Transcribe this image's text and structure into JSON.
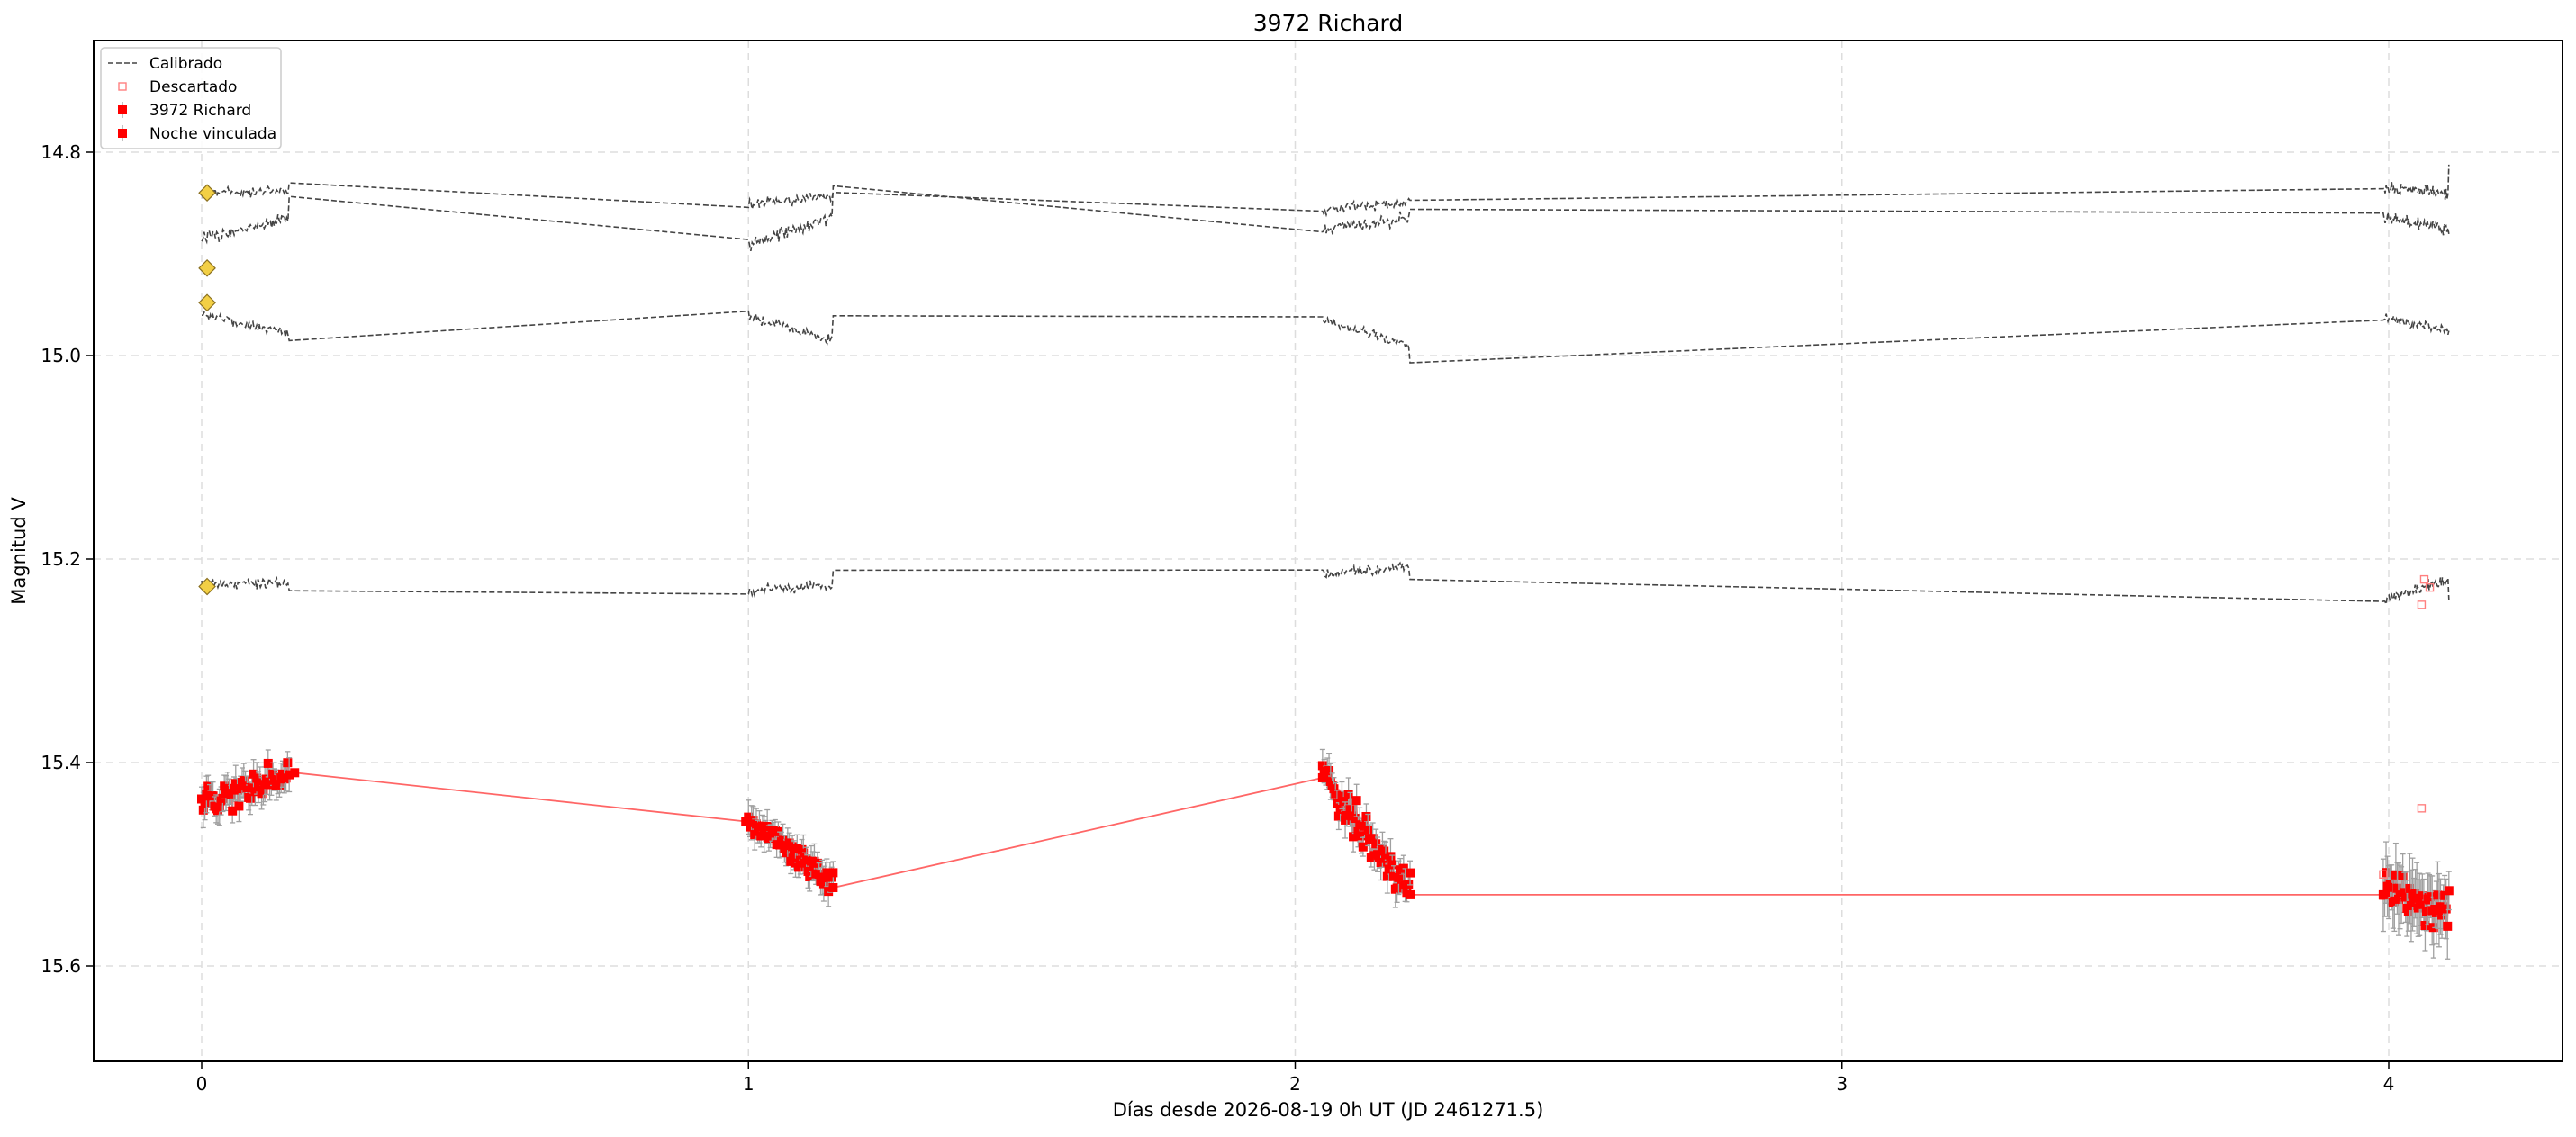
{
  "chart_data": {
    "type": "scatter",
    "title": "3972 Richard",
    "xlabel": "Días desde 2026-08-19 0h UT (JD 2461271.5)",
    "ylabel": "Magnitud V",
    "xlim": [
      -0.2,
      4.32
    ],
    "ylim": [
      15.7,
      14.69
    ],
    "y_inverted": true,
    "grid": true,
    "legend_position": "upper-left",
    "x_ticks": [
      "0",
      "1",
      "2",
      "3",
      "4"
    ],
    "y_ticks": [
      "14.8",
      "15.0",
      "15.2",
      "15.4",
      "15.6"
    ],
    "legend": [
      {
        "label": "Calibrado",
        "marker": "dashed-line"
      },
      {
        "label": "Descartado",
        "marker": "open-square"
      },
      {
        "label": "3972 Richard",
        "marker": "filled-square-errorbar"
      },
      {
        "label": "Noche vinculada",
        "marker": "filled-square-errorbar"
      }
    ],
    "colors": {
      "calibrated": "#444444",
      "target": "#ff0000",
      "link_line": "#ff6666",
      "error_bar": "#a0a0a0",
      "comp_marker_fill": "#f2cf45",
      "grid": "#dddddd"
    },
    "sessions": [
      {
        "night": 0,
        "x_start": 0.0,
        "x_end": 0.16
      },
      {
        "night": 1,
        "x_start": 1.0,
        "x_end": 1.155
      },
      {
        "night": 2,
        "x_start": 2.05,
        "x_end": 2.21
      },
      {
        "night": 3,
        "x_start": 3.99,
        "x_end": 4.11
      }
    ],
    "calibrated_series": [
      {
        "levels": [
          14.84,
          14.838,
          14.85,
          14.844,
          14.857,
          14.848,
          14.835,
          14.841
        ],
        "noise": 0.008
      },
      {
        "levels": [
          14.885,
          14.865,
          14.89,
          14.865,
          14.875,
          14.865,
          14.865,
          14.875
        ],
        "noise": 0.009
      },
      {
        "levels": [
          14.96,
          14.978,
          14.962,
          14.985,
          14.965,
          14.99,
          14.962,
          14.975
        ],
        "noise": 0.007
      },
      {
        "levels": [
          15.225,
          15.222,
          15.232,
          15.225,
          15.215,
          15.208,
          15.24,
          15.22
        ],
        "noise": 0.008
      }
    ],
    "comparison_start_markers": [
      {
        "x": 0.01,
        "y": 14.84
      },
      {
        "x": 0.01,
        "y": 14.914
      },
      {
        "x": 0.01,
        "y": 14.948
      },
      {
        "x": 0.01,
        "y": 15.227
      }
    ],
    "target_levels": [
      {
        "start": 15.44,
        "end": 15.412
      },
      {
        "start": 15.455,
        "end": 15.52
      },
      {
        "start": 15.415,
        "end": 15.527
      },
      {
        "start": 15.527,
        "end": 15.545
      }
    ],
    "linked_night_points": [
      {
        "x": 0.17,
        "y": 15.41
      },
      {
        "x": 0.995,
        "y": 15.458
      },
      {
        "x": 1.155,
        "y": 15.523
      },
      {
        "x": 2.05,
        "y": 15.415
      },
      {
        "x": 2.21,
        "y": 15.53
      },
      {
        "x": 3.99,
        "y": 15.53
      }
    ],
    "discarded_points": [
      {
        "x": 3.99,
        "y": 15.51
      },
      {
        "x": 4.06,
        "y": 15.245
      },
      {
        "x": 4.06,
        "y": 15.445
      },
      {
        "x": 4.065,
        "y": 15.22
      },
      {
        "x": 4.075,
        "y": 15.228
      }
    ]
  }
}
